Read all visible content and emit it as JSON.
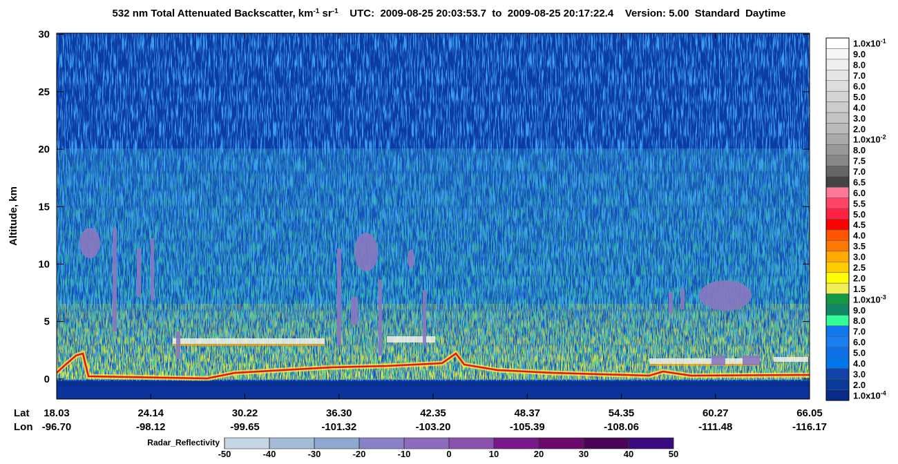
{
  "chart_data": {
    "type": "curtain",
    "title_parts": [
      {
        "text": "532 nm Total Attenuated Backscatter, km"
      },
      {
        "text": "-1",
        "sup": true
      },
      {
        "text": " sr"
      },
      {
        "text": "-1",
        "sup": true
      },
      {
        "text": "    UTC:  2009-08-25 20:03:53.7  to  2009-08-25 20:17:22.4    Version: 5.00  Standard  Daytime"
      }
    ],
    "ylabel": "Altitude, km",
    "ylim": [
      -1.75,
      30.1
    ],
    "yticks": [
      0,
      5,
      10,
      15,
      20,
      25,
      30
    ],
    "row_labels": [
      "Lat",
      "Lon"
    ],
    "lat": [
      "18.03",
      "24.14",
      "30.22",
      "36.30",
      "42.35",
      "48.37",
      "54.35",
      "60.27",
      "66.05"
    ],
    "lon": [
      "-96.70",
      "-98.12",
      "-99.65",
      "-101.32",
      "-103.20",
      "-105.39",
      "-108.06",
      "-111.48",
      "-116.17"
    ],
    "colorbar": {
      "labels": [
        {
          "text": "1.0x10",
          "sup": "-1"
        },
        "9.0",
        "8.0",
        "7.0",
        "6.0",
        "5.0",
        "4.0",
        "3.0",
        "2.0",
        {
          "text": "1.0x10",
          "sup": "-2"
        },
        "8.0",
        "7.5",
        "7.0",
        "6.5",
        "6.0",
        "5.5",
        "5.0",
        "4.5",
        "4.0",
        "3.5",
        "3.0",
        "2.5",
        "2.0",
        "1.5",
        {
          "text": "1.0x10",
          "sup": "-3"
        },
        "9.0",
        "8.0",
        "7.0",
        "6.0",
        "5.0",
        "4.0",
        "3.0",
        "2.0",
        {
          "text": "1.0x10",
          "sup": "-4"
        }
      ],
      "colors": [
        "#ffffff",
        "#f7f7f7",
        "#eeeeee",
        "#e6e6e6",
        "#dddddd",
        "#d4d4d4",
        "#cccccc",
        "#c3c3c3",
        "#bbbbbb",
        "#aaaaaa",
        "#999999",
        "#888888",
        "#666666",
        "#444444",
        "#ff7799",
        "#ff4466",
        "#ff2244",
        "#ff0000",
        "#ff5500",
        "#ff7700",
        "#ffaa00",
        "#ffcc00",
        "#ffff00",
        "#eeee55",
        "#119944",
        "#118866",
        "#33ff99",
        "#1177ee",
        "#1a80f0",
        "#0d70e8",
        "#0077ee",
        "#1144aa",
        "#0a3a99",
        "#082a88"
      ]
    },
    "radar_colorbar": {
      "label": "Radar_Reflectivity",
      "lim": [
        -50,
        50
      ],
      "ticks": [
        -50,
        -40,
        -30,
        -20,
        -10,
        0,
        10,
        20,
        30,
        40,
        50
      ],
      "colors": [
        "#c6d5e6",
        "#a5bcd8",
        "#8ea8d0",
        "#8a82c6",
        "#8c6cbc",
        "#8a52ae",
        "#7a1a8a",
        "#6a0a6a",
        "#4a0555",
        "#3a0a80"
      ]
    }
  }
}
